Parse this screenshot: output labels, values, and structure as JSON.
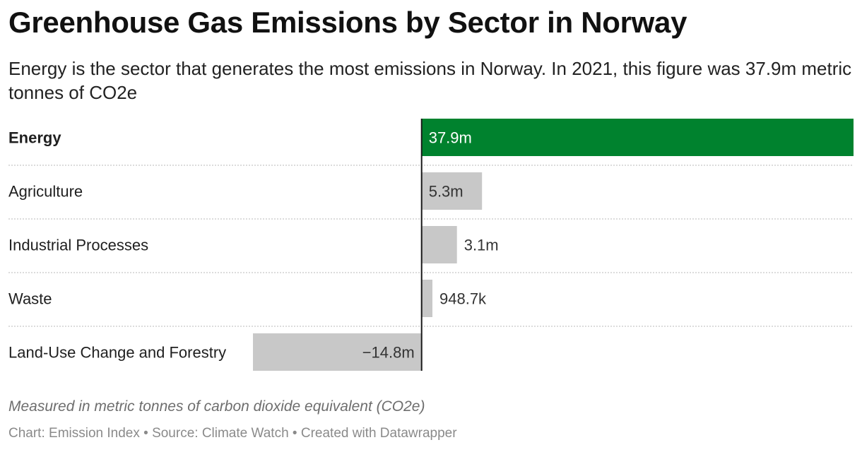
{
  "header": {
    "title": "Greenhouse Gas Emissions by Sector in Norway",
    "subtitle": "Energy is the sector that generates the most emissions in Norway. In 2021, this figure was 37.9m metric tonnes of CO2e"
  },
  "footer": {
    "note": "Measured in metric tonnes of carbon dioxide equivalent (CO2e)",
    "credits": "Chart: Emission Index • Source: Climate Watch • Created with Datawrapper"
  },
  "chart_data": {
    "type": "bar",
    "orientation": "horizontal",
    "categories": [
      "Energy",
      "Agriculture",
      "Industrial Processes",
      "Waste",
      "Land-Use Change and Forestry"
    ],
    "values": [
      37900000,
      5300000,
      3100000,
      948700,
      -14800000
    ],
    "labels": [
      "37.9m",
      "5.3m",
      "3.1m",
      "948.7k",
      "−14.8m"
    ],
    "highlight": "Energy",
    "colors": {
      "highlight": "#00822e",
      "default": "#c8c8c8",
      "axis": "#1a1a1a",
      "separator": "#c8c8c8"
    },
    "xlim": [
      -14800000,
      37900000
    ],
    "grid": false
  }
}
